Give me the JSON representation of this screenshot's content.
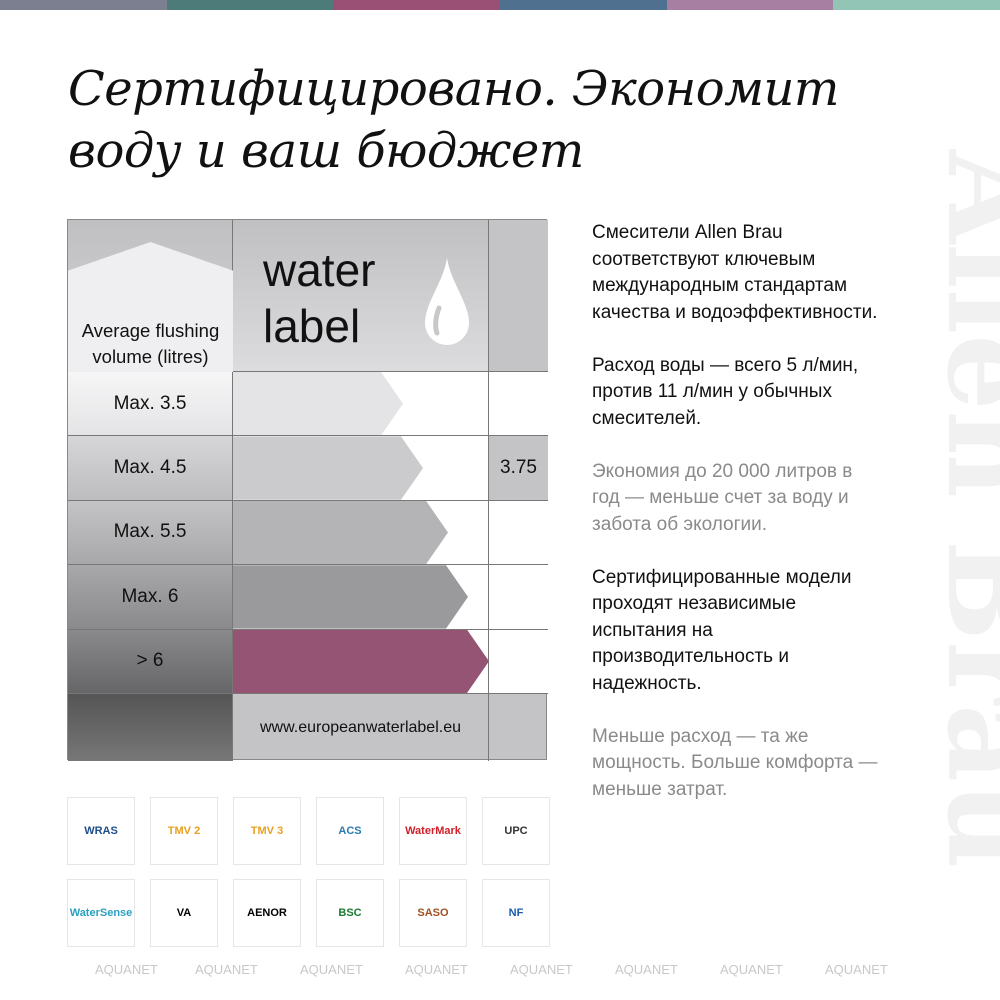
{
  "colors": {
    "bar": [
      "#7c7f90",
      "#4c7b79",
      "#9a5074",
      "#50708f",
      "#a77fa3",
      "#92c5b5"
    ],
    "accent": "#955474"
  },
  "title": "Сертифицировано. Экономит воду и ваш бюджет",
  "brand_watermark": "Allen Brau",
  "water_label": {
    "header": "Average flushing volume (litres)",
    "logo_text_1": "water",
    "logo_text_2": "label",
    "icon": "water-drop-icon",
    "rows": [
      {
        "class": "Max. 3.5",
        "value": ""
      },
      {
        "class": "Max. 4.5",
        "value": "3.75"
      },
      {
        "class": "Max. 5.5",
        "value": ""
      },
      {
        "class": "Max. 6",
        "value": ""
      },
      {
        "class": "> 6",
        "value": ""
      }
    ],
    "url": "www.europeanwaterlabel.eu"
  },
  "certifications": [
    "WRAS",
    "TMV 2",
    "TMV 3",
    "ACS",
    "WaterMark",
    "UPC",
    "WaterSense",
    "VA",
    "AENOR",
    "BSC",
    "SASO",
    "NF"
  ],
  "text": {
    "p1": "Смесители Allen Brau соответствуют ключевым международным стандартам качества и водоэффективности.",
    "p2": "Расход воды — всего 5 л/мин, против 11 л/мин у обычных смесителей.",
    "p3": "Экономия до 20 000 литров в год — меньше счет за воду и забота об экологии.",
    "p4": "Сертифицированные модели проходят независимые испытания на производительность и надежность.",
    "p5": "Меньше расход — та же мощность. Больше комфорта — меньше затрат."
  },
  "watermark_text": "AQUANET"
}
